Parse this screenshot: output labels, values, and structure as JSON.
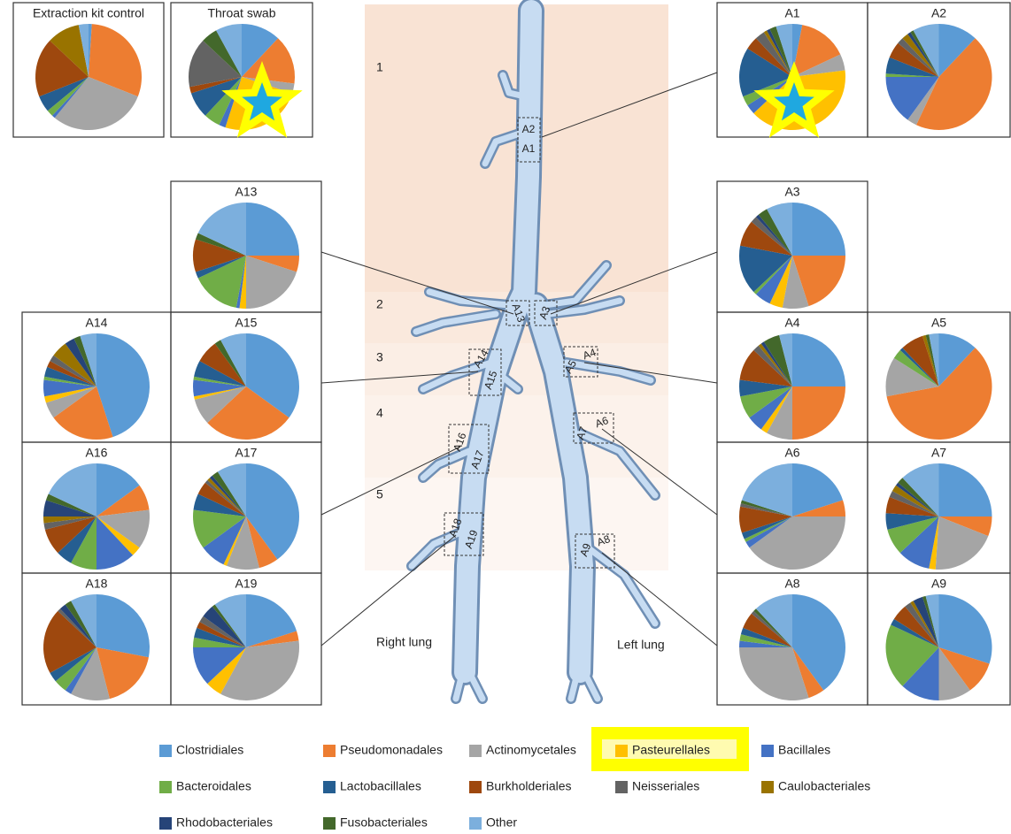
{
  "chart_data": [
    {
      "type": "pie",
      "title": "Extraction kit control",
      "values": [
        1,
        30,
        30,
        0,
        1,
        2,
        5,
        18,
        0,
        10,
        0,
        0,
        3
      ]
    },
    {
      "type": "pie",
      "title": "Throat swab",
      "values": [
        12,
        15,
        3,
        25,
        2,
        5,
        8,
        2,
        15,
        0,
        0,
        5,
        8
      ]
    },
    {
      "type": "pie",
      "title": "A1",
      "values": [
        3,
        15,
        5,
        40,
        3,
        3,
        15,
        4,
        3,
        1,
        1,
        2,
        5
      ]
    },
    {
      "type": "pie",
      "title": "A2",
      "values": [
        12,
        45,
        3,
        0,
        15,
        1,
        5,
        5,
        2,
        2,
        1,
        1,
        8
      ]
    },
    {
      "type": "pie",
      "title": "A13",
      "values": [
        25,
        5,
        20,
        2,
        1,
        15,
        2,
        10,
        0,
        0,
        0,
        2,
        18
      ]
    },
    {
      "type": "pie",
      "title": "A3",
      "values": [
        25,
        20,
        8,
        4,
        5,
        1,
        15,
        8,
        2,
        0,
        1,
        3,
        8
      ]
    },
    {
      "type": "pie",
      "title": "A14",
      "values": [
        45,
        20,
        5,
        2,
        5,
        1,
        3,
        2,
        2,
        5,
        3,
        2,
        5
      ]
    },
    {
      "type": "pie",
      "title": "A15",
      "values": [
        35,
        28,
        8,
        1,
        5,
        1,
        5,
        7,
        0,
        0,
        0,
        2,
        8
      ]
    },
    {
      "type": "pie",
      "title": "A4",
      "values": [
        25,
        25,
        8,
        2,
        5,
        7,
        5,
        10,
        2,
        1,
        1,
        5,
        4
      ]
    },
    {
      "type": "pie",
      "title": "A5",
      "values": [
        12,
        60,
        12,
        0,
        0,
        3,
        1,
        7,
        0,
        1,
        0,
        1,
        3
      ]
    },
    {
      "type": "pie",
      "title": "A16",
      "values": [
        15,
        8,
        12,
        3,
        12,
        8,
        5,
        8,
        2,
        2,
        5,
        2,
        18
      ]
    },
    {
      "type": "pie",
      "title": "A17",
      "values": [
        40,
        6,
        10,
        1,
        8,
        12,
        5,
        4,
        1,
        1,
        1,
        2,
        9
      ]
    },
    {
      "type": "pie",
      "title": "A6",
      "values": [
        20,
        5,
        40,
        0,
        2,
        1,
        2,
        8,
        1,
        0,
        0,
        1,
        20
      ]
    },
    {
      "type": "pie",
      "title": "A7",
      "values": [
        25,
        6,
        20,
        2,
        10,
        8,
        5,
        5,
        2,
        2,
        1,
        2,
        12
      ]
    },
    {
      "type": "pie",
      "title": "A18",
      "values": [
        28,
        18,
        12,
        0,
        2,
        4,
        3,
        20,
        1,
        0,
        2,
        2,
        8
      ]
    },
    {
      "type": "pie",
      "title": "A19",
      "values": [
        20,
        3,
        35,
        5,
        12,
        3,
        3,
        2,
        2,
        0,
        4,
        1,
        10
      ]
    },
    {
      "type": "pie",
      "title": "A8",
      "values": [
        40,
        5,
        30,
        0,
        2,
        2,
        2,
        5,
        1,
        0,
        0,
        1,
        12
      ]
    },
    {
      "type": "pie",
      "title": "A9",
      "values": [
        30,
        10,
        10,
        0,
        12,
        20,
        2,
        5,
        2,
        1,
        3,
        1,
        4
      ]
    }
  ],
  "legend": [
    {
      "name": "Clostridiales",
      "color": "#5b9bd5"
    },
    {
      "name": "Pseudomonadales",
      "color": "#ed7d31"
    },
    {
      "name": "Actinomycetales",
      "color": "#a5a5a5"
    },
    {
      "name": "Pasteurellales",
      "color": "#ffc000"
    },
    {
      "name": "Bacillales",
      "color": "#4472c4"
    },
    {
      "name": "Bacteroidales",
      "color": "#70ad47"
    },
    {
      "name": "Lactobacillales",
      "color": "#255e91"
    },
    {
      "name": "Burkholderiales",
      "color": "#9e480e"
    },
    {
      "name": "Neisseriales",
      "color": "#636363"
    },
    {
      "name": "Caulobacteriales",
      "color": "#997300"
    },
    {
      "name": "Rhodobacteriales",
      "color": "#264478"
    },
    {
      "name": "Fusobacteriales",
      "color": "#43682b"
    },
    {
      "name": "Other",
      "color": "#7cafdd"
    }
  ],
  "diagram": {
    "zones": [
      "1",
      "2",
      "3",
      "4",
      "5"
    ],
    "regions": [
      "A2",
      "A1",
      "A13",
      "A3",
      "A14",
      "A15",
      "A4",
      "A5",
      "A16",
      "A17",
      "A7",
      "A6",
      "A18",
      "A19",
      "A9",
      "A8"
    ],
    "right_lung": "Right lung",
    "left_lung": "Left lung"
  }
}
